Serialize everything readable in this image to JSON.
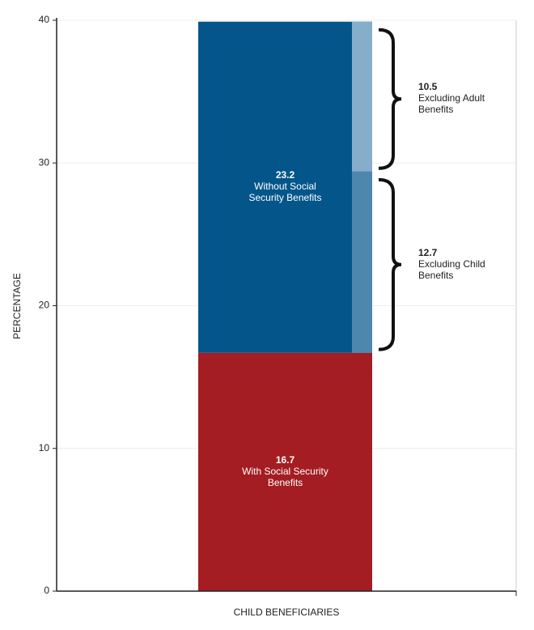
{
  "chart_data": {
    "type": "stacked_bar",
    "ylabel": "PERCENTAGE",
    "categories": [
      "CHILD BENEFICIARIES"
    ],
    "ylim": [
      0,
      40
    ],
    "yticks": [
      0,
      10,
      20,
      30,
      40
    ],
    "grid": true,
    "series": [
      {
        "name": "With Social Security Benefits",
        "color": "#a31d22",
        "values": [
          16.7
        ]
      },
      {
        "name": "Without Social Security Benefits",
        "color": "#04568a",
        "values": [
          23.2
        ]
      }
    ],
    "breakdown": [
      {
        "name": "Excluding Child Benefits",
        "color": "#4e87ae",
        "values": [
          12.7
        ]
      },
      {
        "name": "Excluding Adult Benefits",
        "color": "#86aecb",
        "values": [
          10.5
        ]
      }
    ]
  }
}
